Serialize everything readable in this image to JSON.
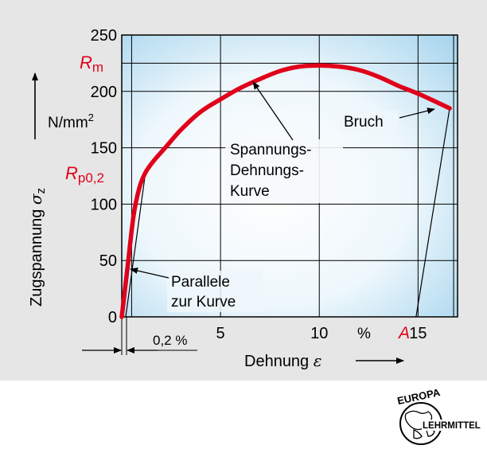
{
  "chart_data": {
    "type": "line",
    "title": "",
    "xlabel": "Dehnung",
    "xlabel_symbol": "ε",
    "x_unit": "%",
    "ylabel": "Zugspannung",
    "ylabel_symbol": "σ",
    "ylabel_subscript": "z",
    "y_unit": "N/mm",
    "y_unit_power": "2",
    "xlim": [
      0,
      17
    ],
    "ylim": [
      0,
      250
    ],
    "x_ticks": [
      5,
      10,
      15
    ],
    "y_ticks": [
      0,
      50,
      100,
      150,
      200,
      250
    ],
    "grid": true,
    "x_grid_lines": [
      0,
      0.5,
      5,
      10,
      15,
      16.8
    ],
    "y_grid_lines": [
      0,
      50,
      100,
      150,
      200,
      225,
      250
    ],
    "curve_color": "#e0001a",
    "series": [
      {
        "name": "Spannungs-Dehnungs-Kurve",
        "x": [
          0,
          0.3,
          0.6,
          0.9,
          1.2,
          1.6,
          2.2,
          3.0,
          4.0,
          5.0,
          6.0,
          7.0,
          8.0,
          9.0,
          10.0,
          11.0,
          12.0,
          13.0,
          14.0,
          15.0,
          16.0,
          16.6
        ],
        "y": [
          0,
          45,
          90,
          115,
          128,
          138,
          150,
          166,
          182,
          193,
          203,
          211,
          218,
          222,
          223,
          222,
          219,
          213,
          205,
          198,
          190,
          185
        ]
      }
    ],
    "marks": {
      "Rm": {
        "label_main": "R",
        "label_sub": "m",
        "y": 225
      },
      "Rp02": {
        "label_main": "R",
        "label_sub": "p0,2",
        "y": 124
      },
      "A": {
        "label": "A",
        "x": 14.5
      }
    },
    "parallel_line": {
      "x0": 0.2,
      "y0": 0,
      "x1": 1.2,
      "y1": 128
    },
    "break_line": {
      "x0": 16.6,
      "y0": 185,
      "x1": 14.9,
      "y1": 0
    },
    "annotations": {
      "offset_label": "0,2 %",
      "parallel_line1": "Parallele",
      "parallel_line2": "zur Kurve",
      "curve_line1": "Spannungs-",
      "curve_line2": "Dehnungs-",
      "curve_line3": "Kurve",
      "break": "Bruch"
    }
  },
  "logo": {
    "top_text": "EUROPA",
    "side_text": "LEHRMITTEL"
  }
}
